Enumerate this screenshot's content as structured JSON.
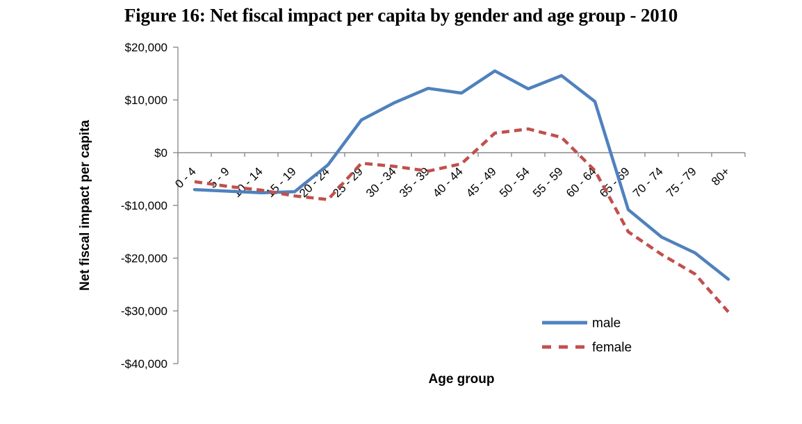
{
  "chart_data": {
    "type": "line",
    "title": "Figure 16: Net fiscal impact per capita by gender and age group - 2010",
    "xlabel": "Age group",
    "ylabel": "Net fiscal impact per capita",
    "categories": [
      "0 - 4",
      "5 - 9",
      "10 - 14",
      "15 - 19",
      "20 - 24",
      "25 - 29",
      "30 - 34",
      "35 - 39",
      "40 - 44",
      "45 - 49",
      "50 - 54",
      "55 - 59",
      "60 - 64",
      "65 - 69",
      "70 - 74",
      "75 - 79",
      "80+"
    ],
    "series": [
      {
        "name": "male",
        "color": "#4F81BD",
        "line_style": "solid",
        "values": [
          -7000,
          -7300,
          -7600,
          -7400,
          -2300,
          6200,
          9500,
          12200,
          11300,
          15500,
          12100,
          14600,
          9700,
          -10800,
          -16000,
          -19000,
          -24000
        ]
      },
      {
        "name": "female",
        "color": "#C0504D",
        "line_style": "dashed",
        "values": [
          -5500,
          -6400,
          -7100,
          -8200,
          -8900,
          -2000,
          -2600,
          -3500,
          -2100,
          3700,
          4500,
          2900,
          -3400,
          -15000,
          -19300,
          -23000,
          -30200
        ]
      }
    ],
    "ylim": [
      -40000,
      20000
    ],
    "yticks": [
      {
        "value": 20000,
        "label": "$20,000"
      },
      {
        "value": 10000,
        "label": "$10,000"
      },
      {
        "value": 0,
        "label": "$0"
      },
      {
        "value": -10000,
        "label": "-$10,000"
      },
      {
        "value": -20000,
        "label": "-$20,000"
      },
      {
        "value": -30000,
        "label": "-$30,000"
      },
      {
        "value": -40000,
        "label": "-$40,000"
      }
    ],
    "grid": "zero-baseline-only",
    "legend_position": "inside-bottom-right",
    "axis_color": "#8C8C8C",
    "text_color": "#000000"
  }
}
